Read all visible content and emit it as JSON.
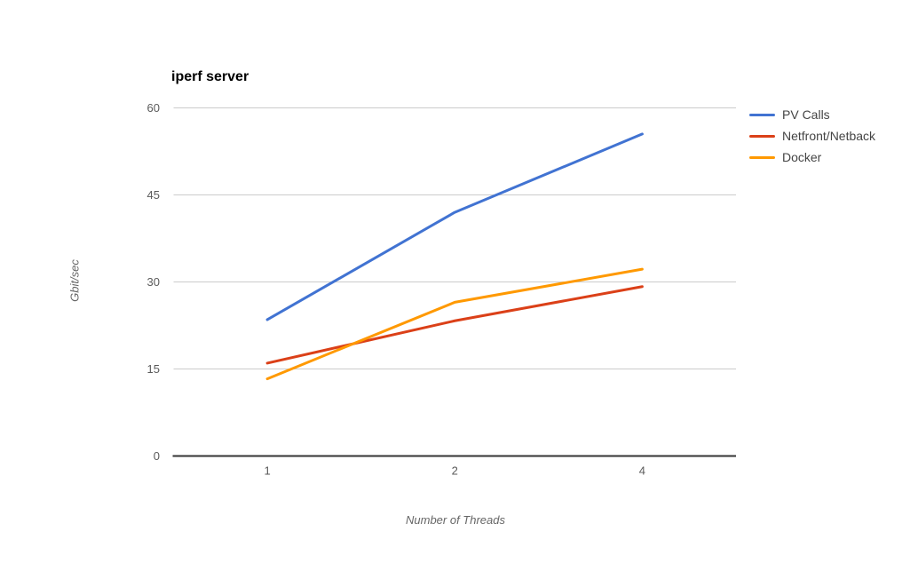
{
  "chart": {
    "style": {
      "background": "#ffffff",
      "gridline_color": "#cccccc",
      "axis_line_color": "#333333",
      "tick_label_color": "#5a5a5a",
      "axis_title_color": "#666666",
      "legend_label_color": "#444444",
      "title_color": "#000000"
    }
  },
  "chart_data": {
    "type": "line",
    "title": "iperf server",
    "xlabel": "Number of Threads",
    "ylabel": "Gbit/sec",
    "categories": [
      "1",
      "2",
      "4"
    ],
    "series": [
      {
        "name": "PV Calls",
        "color": "#4173d2",
        "values": [
          23.5,
          42.0,
          55.5
        ]
      },
      {
        "name": "Netfront/Netback",
        "color": "#db4018",
        "values": [
          16.0,
          23.3,
          29.2
        ]
      },
      {
        "name": "Docker",
        "color": "#ff9900",
        "values": [
          13.3,
          26.5,
          32.2
        ]
      }
    ],
    "ylim": [
      0,
      60
    ],
    "yticks": [
      0,
      15,
      30,
      45,
      60
    ],
    "grid": true,
    "legend_position": "right",
    "markers": false
  }
}
